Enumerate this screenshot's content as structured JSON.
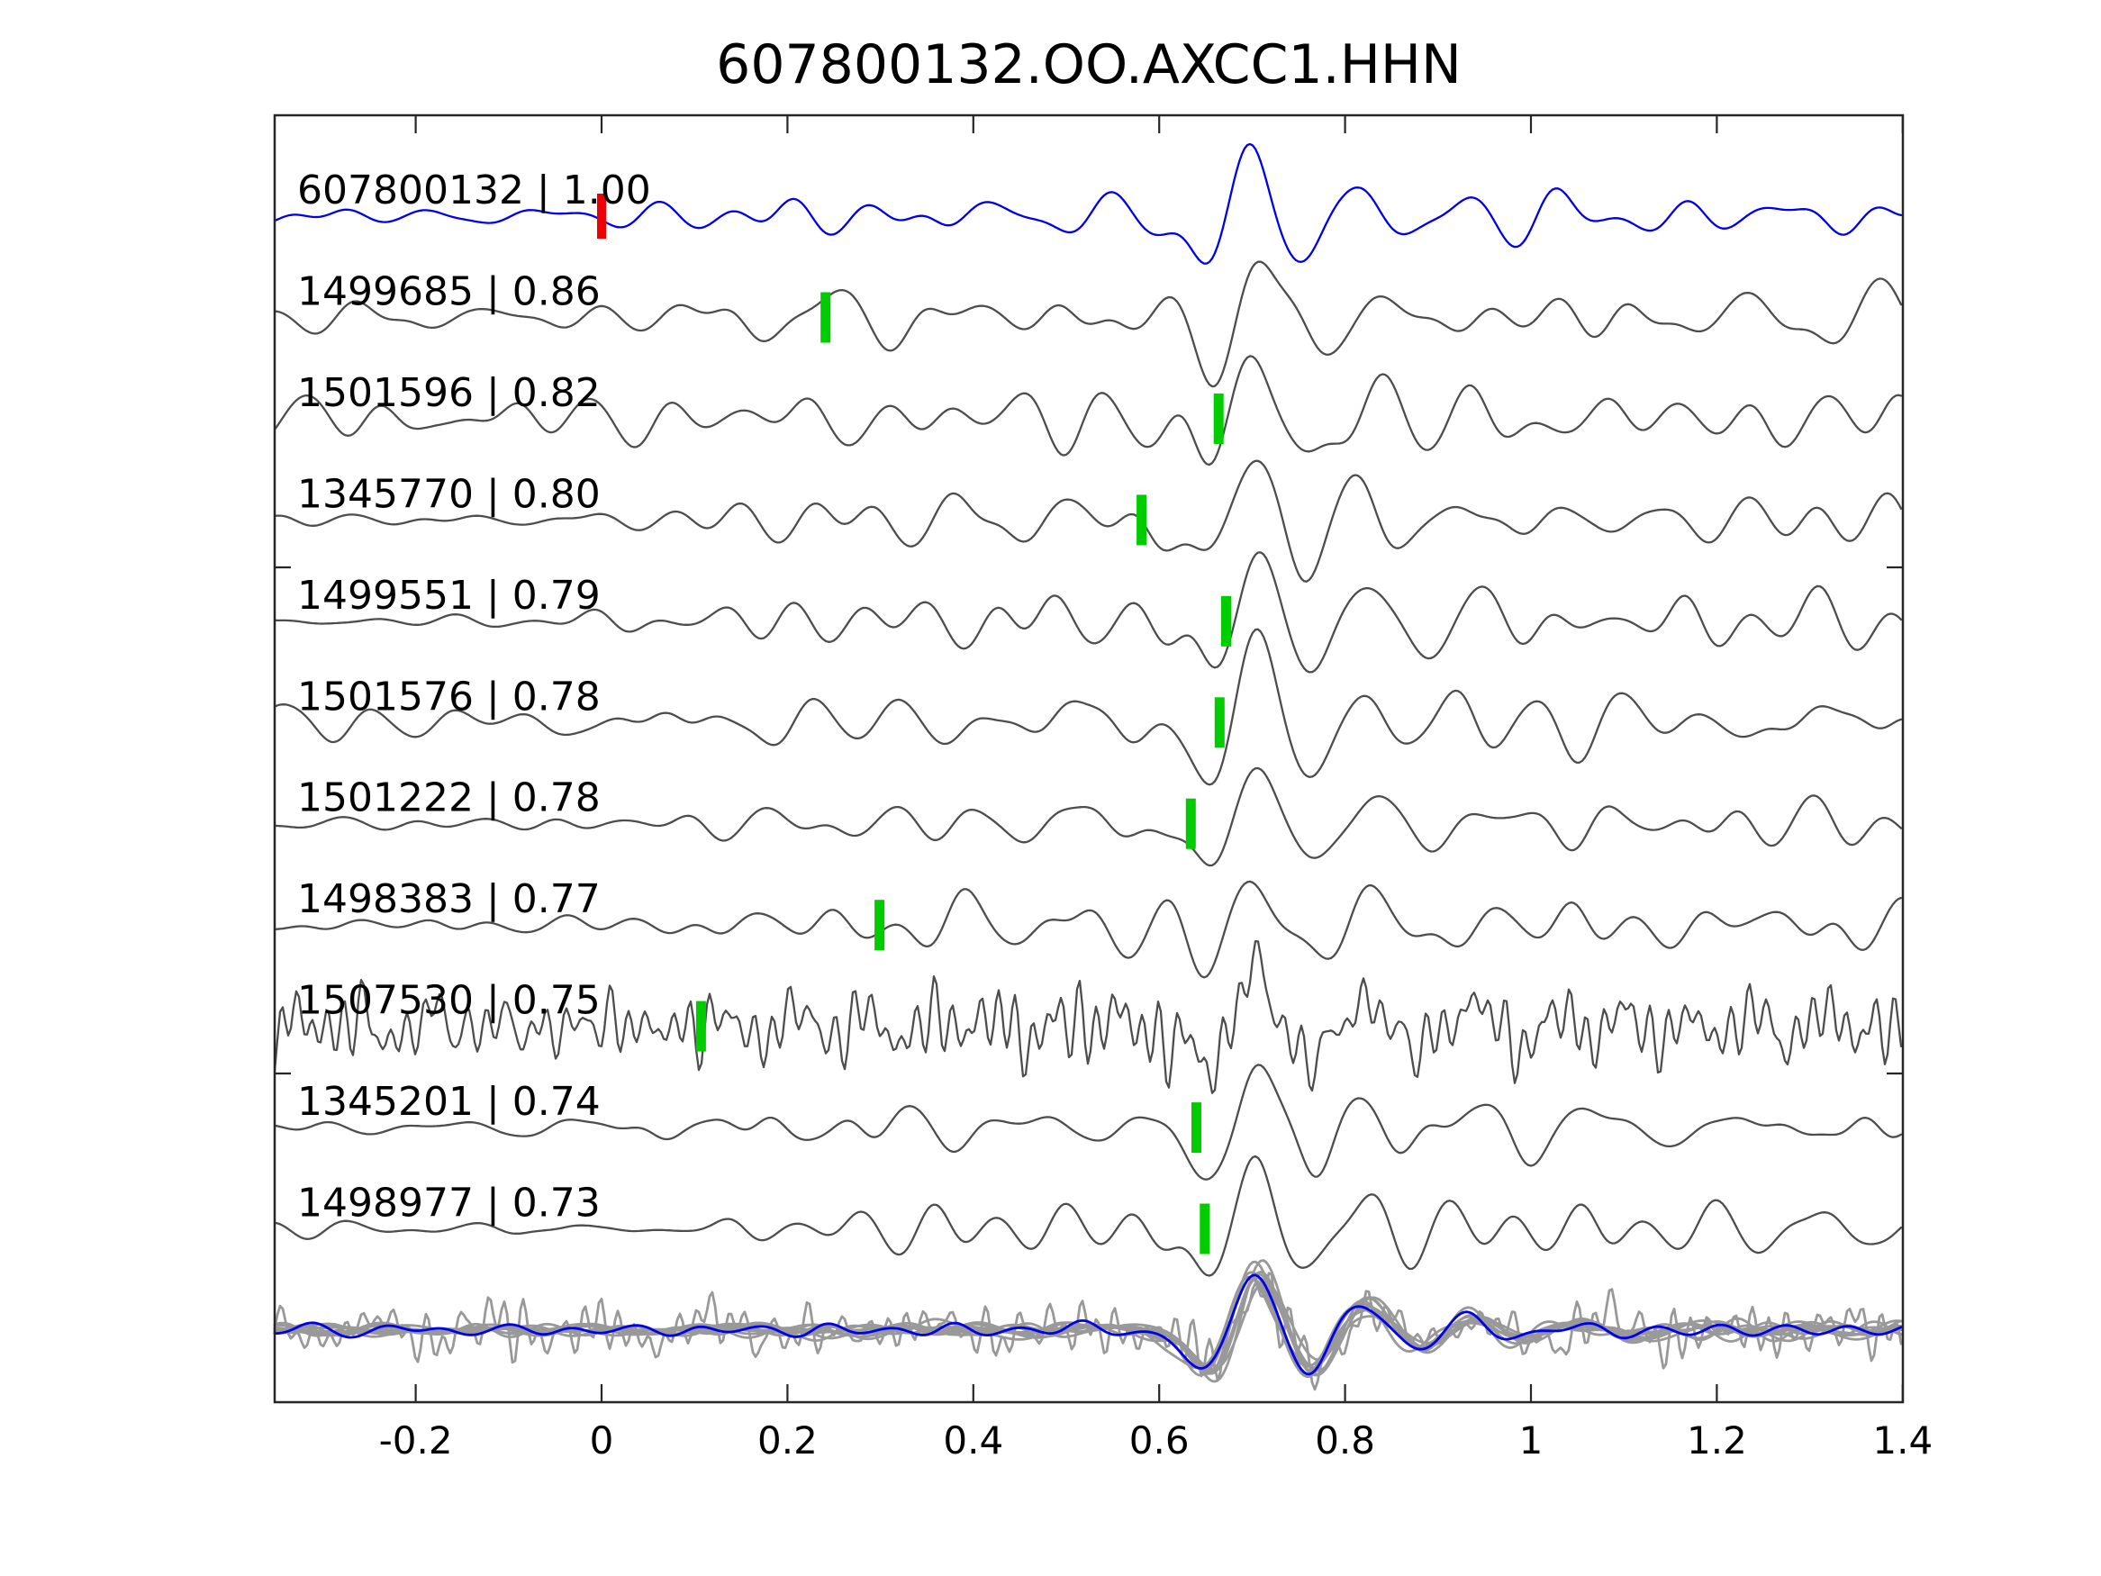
{
  "title": "607800132.OO.AXCC1.HHN",
  "colors": {
    "template_trace": "#0000ee",
    "match_trace": "#4d4d4d",
    "pick_marker": "#00cc00",
    "template_pick_marker": "#ee0000",
    "overlay_gray": "#999999",
    "frame": "#262626",
    "text": "#000000",
    "background": "#ffffff"
  },
  "chart_data": {
    "type": "line",
    "title": "607800132.OO.AXCC1.HHN",
    "xlabel": "",
    "ylabel": "",
    "x_range": [
      -0.352,
      1.4
    ],
    "x_ticks": [
      -0.2,
      0,
      0.2,
      0.4,
      0.6,
      0.8,
      1,
      1.2,
      1.4
    ],
    "x_tick_labels": [
      "-0.2",
      "0",
      "0.2",
      "0.4",
      "0.6",
      "0.8",
      "1",
      "1.2",
      "1.4"
    ],
    "grid": false,
    "legend": false,
    "description": "Stacked seismic waveform traces: blue detection template 607800132 on top with red pick at t=0, ten gray matched event traces with green pick markers, and an overlay row at bottom showing all gray traces superimposed with the blue template.",
    "traces": [
      {
        "id": "607800132",
        "correlation": 1.0,
        "label": "607800132 | 1.00",
        "role": "template",
        "pick_time": 0.0,
        "pick_color": "template_pick_marker",
        "noisy": false,
        "noise_pre": 10,
        "noise_mid": 20,
        "pulse_amp": 45,
        "hf_amp": 0,
        "seed": 101
      },
      {
        "id": "1499685",
        "correlation": 0.86,
        "label": "1499685 | 0.86",
        "role": "match",
        "pick_time": 0.241,
        "pick_color": "pick_marker",
        "noisy": false,
        "noise_pre": 14,
        "noise_mid": 26,
        "pulse_amp": 47,
        "hf_amp": 0,
        "seed": 202
      },
      {
        "id": "1501596",
        "correlation": 0.82,
        "label": "1501596 | 0.82",
        "role": "match",
        "pick_time": 0.664,
        "pick_color": "pick_marker",
        "noisy": false,
        "noise_pre": 21,
        "noise_mid": 30,
        "pulse_amp": 47,
        "hf_amp": 0,
        "seed": 303
      },
      {
        "id": "1345770",
        "correlation": 0.8,
        "label": "1345770 | 0.80",
        "role": "match",
        "pick_time": 0.581,
        "pick_color": "pick_marker",
        "noisy": false,
        "noise_pre": 6,
        "noise_mid": 25,
        "pulse_amp": 47,
        "hf_amp": 0,
        "seed": 404
      },
      {
        "id": "1499551",
        "correlation": 0.79,
        "label": "1499551 | 0.79",
        "role": "match",
        "pick_time": 0.672,
        "pick_color": "pick_marker",
        "noisy": false,
        "noise_pre": 9,
        "noise_mid": 26,
        "pulse_amp": 48,
        "hf_amp": 0,
        "seed": 505
      },
      {
        "id": "1501576",
        "correlation": 0.78,
        "label": "1501576 | 0.78",
        "role": "match",
        "pick_time": 0.665,
        "pick_color": "pick_marker",
        "noisy": false,
        "noise_pre": 17,
        "noise_mid": 28,
        "pulse_amp": 46,
        "hf_amp": 0,
        "seed": 606
      },
      {
        "id": "1501222",
        "correlation": 0.78,
        "label": "1501222 | 0.78",
        "role": "match",
        "pick_time": 0.634,
        "pick_color": "pick_marker",
        "noisy": false,
        "noise_pre": 6,
        "noise_mid": 24,
        "pulse_amp": 47,
        "hf_amp": 0,
        "seed": 707
      },
      {
        "id": "1498383",
        "correlation": 0.77,
        "label": "1498383 | 0.77",
        "role": "match",
        "pick_time": 0.299,
        "pick_color": "pick_marker",
        "noisy": false,
        "noise_pre": 8,
        "noise_mid": 26,
        "pulse_amp": 46,
        "hf_amp": 0,
        "seed": 808
      },
      {
        "id": "1507530",
        "correlation": 0.75,
        "label": "1507530 | 0.75",
        "role": "match",
        "pick_time": 0.107,
        "pick_color": "pick_marker",
        "noisy": true,
        "noise_pre": 14,
        "noise_mid": 16,
        "pulse_amp": 38,
        "hf_amp": 26,
        "seed": 909
      },
      {
        "id": "1345201",
        "correlation": 0.74,
        "label": "1345201 | 0.74",
        "role": "match",
        "pick_time": 0.64,
        "pick_color": "pick_marker",
        "noisy": false,
        "noise_pre": 7,
        "noise_mid": 22,
        "pulse_amp": 46,
        "hf_amp": 0,
        "seed": 1010
      },
      {
        "id": "1498977",
        "correlation": 0.73,
        "label": "1498977 | 0.73",
        "role": "match",
        "pick_time": 0.649,
        "pick_color": "pick_marker",
        "noisy": false,
        "noise_pre": 7,
        "noise_mid": 23,
        "pulse_amp": 46,
        "hf_amp": 0,
        "seed": 1111
      }
    ],
    "overlay_row": {
      "description": "All matched traces (gray) superimposed with the template (blue), aligned on the main pulse near t=0.7",
      "gray_noise_pre": 5,
      "gray_noise_mid": 8,
      "gray_pulse_amp": 40,
      "noisy_member_hf_amp": 18,
      "noisy_member_pulse_amp": 28,
      "template_noise_pre": 5,
      "template_noise_mid": 7,
      "template_pulse_amp": 40
    },
    "waveform_model": {
      "main_pulse_time": 0.703,
      "trough_before": 0.654,
      "trough_after": 0.764,
      "pulse_components": [
        [
          -0.22,
          0.603,
          0.035
        ],
        [
          0.12,
          0.552,
          0.04
        ],
        [
          -1.15,
          0.654,
          0.027
        ],
        [
          1.6,
          0.703,
          0.027
        ],
        [
          -1.05,
          0.764,
          0.028
        ],
        [
          0.7,
          0.822,
          0.028
        ],
        [
          -0.48,
          0.878,
          0.029
        ],
        [
          0.32,
          0.934,
          0.031
        ],
        [
          -0.21,
          0.99,
          0.033
        ],
        [
          0.13,
          1.046,
          0.035
        ],
        [
          -0.08,
          1.102,
          0.038
        ]
      ]
    }
  }
}
